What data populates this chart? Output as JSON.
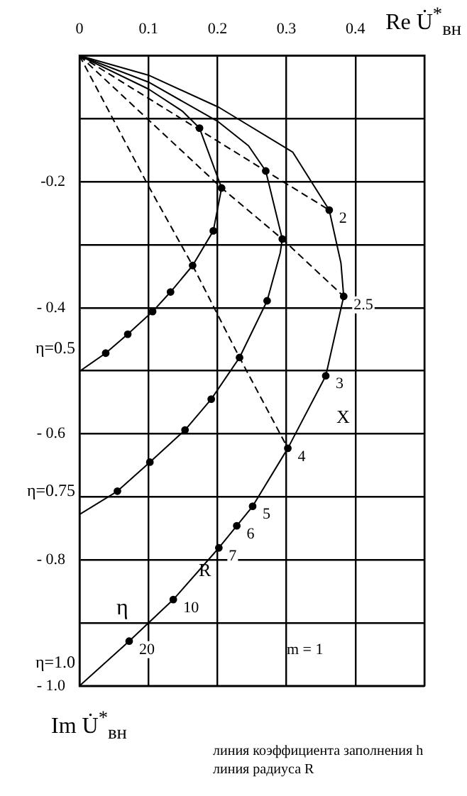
{
  "chart_data": {
    "type": "line",
    "xlabel": "Re U̇$^{*}$$_{вн}$",
    "ylabel": "Im U̇$^{*}$$_{вн}$",
    "xlim": [
      0,
      0.5
    ],
    "ylim": [
      -1.0,
      0
    ],
    "xticks": [
      0,
      0.1,
      0.2,
      0.3,
      0.4,
      {
        "value": 0.5,
        "label": null
      }
    ],
    "yticks": [
      {
        "value": 0,
        "label": null
      },
      {
        "value": -0.1,
        "label": null
      },
      -0.2,
      {
        "value": -0.3,
        "label": null
      },
      {
        "value": -0.4,
        "label": "- 0.4"
      },
      {
        "value": -0.5,
        "label": null
      },
      {
        "value": -0.6,
        "label": "- 0.6"
      },
      {
        "value": -0.7,
        "label": null
      },
      {
        "value": -0.8,
        "label": "- 0.8"
      },
      {
        "value": -0.9,
        "label": null
      },
      {
        "value": -1.0,
        "label": "- 1.0"
      }
    ],
    "grid": true,
    "legend": false,
    "marker": "none",
    "line_style": "solid",
    "series": [
      {
        "name": "η=1.0",
        "color": "#000000",
        "x": [
          0,
          0.1,
          0.202,
          0.309,
          0.362,
          0.379,
          0.383,
          0.357,
          0.302,
          0.251,
          0.228,
          0.202,
          0.136,
          0.072,
          0
        ],
        "values": [
          0,
          -0.031,
          -0.082,
          -0.153,
          -0.245,
          -0.329,
          -0.382,
          -0.508,
          -0.623,
          -0.715,
          -0.746,
          -0.781,
          -0.863,
          -0.929,
          -1.0
        ]
      },
      {
        "name": "η=0.75",
        "color": "#000000",
        "x": [
          0,
          0.1,
          0.2,
          0.245,
          0.27,
          0.294,
          0.291,
          0.272,
          0.232,
          0.191,
          0.153,
          0.102,
          0.055,
          0
        ],
        "values": [
          0,
          -0.042,
          -0.104,
          -0.143,
          -0.183,
          -0.291,
          -0.313,
          -0.389,
          -0.479,
          -0.545,
          -0.594,
          -0.645,
          -0.691,
          -0.728
        ]
      },
      {
        "name": "η=0.5",
        "color": "#000000",
        "x": [
          0,
          0.1,
          0.149,
          0.174,
          0.206,
          0.194,
          0.164,
          0.132,
          0.106,
          0.07,
          0.038,
          0
        ],
        "values": [
          0,
          -0.053,
          -0.088,
          -0.115,
          -0.21,
          -0.278,
          -0.333,
          -0.375,
          -0.406,
          -0.442,
          -0.472,
          -0.501
        ]
      },
      {
        "color": "#000000",
        "line_style": "dashed",
        "x": [
          0,
          0.1,
          0.164,
          0.232,
          0.302
        ],
        "values": [
          0,
          -0.207,
          -0.333,
          -0.479,
          -0.623
        ]
      },
      {
        "color": "#000000",
        "line_style": "dashed",
        "x": [
          0,
          0.27,
          0.362
        ],
        "values": [
          0,
          -0.183,
          -0.245
        ]
      },
      {
        "color": "#000000",
        "line_style": "dashed",
        "x": [
          0,
          0.206,
          0.294,
          0.383
        ],
        "values": [
          0,
          -0.21,
          -0.291,
          -0.382
        ]
      },
      {
        "type": "scatter",
        "marker": "circle",
        "color": "#000000",
        "x": [
          0.362,
          0.383,
          0.357,
          0.302,
          0.251,
          0.228,
          0.202,
          0.136,
          0.072
        ],
        "values": [
          -0.245,
          -0.382,
          -0.508,
          -0.623,
          -0.715,
          -0.746,
          -0.781,
          -0.863,
          -0.929
        ]
      },
      {
        "type": "scatter",
        "marker": "circle",
        "color": "#000000",
        "x": [
          0.27,
          0.294,
          0.272,
          0.232,
          0.191,
          0.153,
          0.102,
          0.055
        ],
        "values": [
          -0.183,
          -0.291,
          -0.389,
          -0.479,
          -0.545,
          -0.594,
          -0.645,
          -0.691
        ]
      },
      {
        "type": "scatter",
        "marker": "circle",
        "color": "#000000",
        "x": [
          0.174,
          0.206,
          0.194,
          0.164,
          0.132,
          0.106,
          0.07,
          0.038
        ],
        "values": [
          -0.115,
          -0.21,
          -0.278,
          -0.333,
          -0.375,
          -0.406,
          -0.442,
          -0.472
        ]
      }
    ],
    "annotations": [
      {
        "text": "2",
        "x": 0.362,
        "y": -0.245
      },
      {
        "text": "2.5",
        "x": 0.383,
        "y": -0.382
      },
      {
        "text": "3",
        "x": 0.357,
        "y": -0.508
      },
      {
        "text": "4",
        "x": 0.302,
        "y": -0.623
      },
      {
        "text": "5",
        "x": 0.251,
        "y": -0.715
      },
      {
        "text": "6",
        "x": 0.228,
        "y": -0.746
      },
      {
        "text": "7",
        "x": 0.202,
        "y": -0.781
      },
      {
        "text": "10",
        "x": 0.136,
        "y": -0.863
      },
      {
        "text": "20",
        "x": 0.072,
        "y": -0.929
      },
      "X",
      "R",
      "η",
      "m = 1",
      "линия коэффициента заполнения  h",
      "линия радиуса  R"
    ]
  }
}
